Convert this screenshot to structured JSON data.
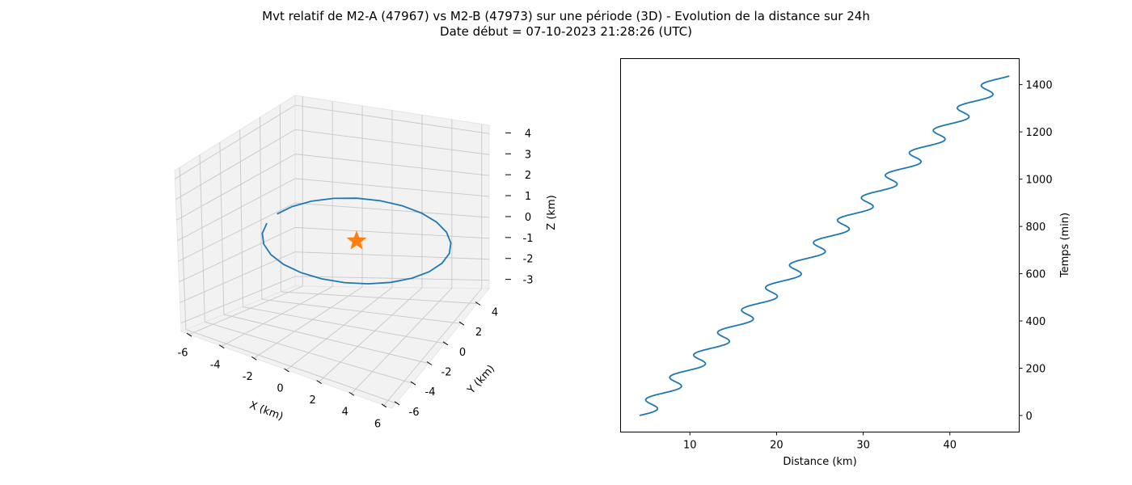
{
  "figure": {
    "title_line1": "Mvt relatif de M2-A (47967) vs M2-B (47973) sur une période (3D) - Evolution de la distance sur 24h",
    "title_line2": "Date début = 07-10-2023 21:28:26 (UTC)"
  },
  "colors": {
    "line": "#1f77b4",
    "marker": "#ff7f0e",
    "pane": "#f2f2f2",
    "grid": "#c8c8c8"
  },
  "chart_data": [
    {
      "type": "line3d",
      "xlabel": "X (km)",
      "ylabel": "Y (km)",
      "zlabel": "Z (km)",
      "xticks": [
        -6,
        -4,
        -2,
        0,
        2,
        4,
        6
      ],
      "yticks": [
        -6,
        -4,
        -2,
        0,
        2,
        4
      ],
      "zticks": [
        -3,
        -2,
        -1,
        0,
        1,
        2,
        3,
        4
      ],
      "xlim": [
        -6.5,
        6.5
      ],
      "ylim": [
        -6.5,
        5.5
      ],
      "zlim": [
        -3.4,
        4.4
      ],
      "marker": {
        "symbol": "star",
        "x": 0,
        "y": 0,
        "z": 0
      },
      "orbit": {
        "center": [
          0,
          0,
          0
        ],
        "semi_axis_x": 6.2,
        "semi_axis_y": 3.6,
        "z_amplitude": 2.2,
        "points": 24
      }
    },
    {
      "type": "line",
      "xlabel": "Distance (km)",
      "ylabel": "Temps (min)",
      "xticks": [
        10,
        20,
        30,
        40
      ],
      "yticks": [
        0,
        200,
        400,
        600,
        800,
        1000,
        1200,
        1400
      ],
      "xlim": [
        2,
        48
      ],
      "ylim": [
        -70,
        1510
      ],
      "yaxis_position": "right",
      "x_start": 4.2,
      "x_end": 46,
      "y_start": 0,
      "y_end": 1436,
      "wave_amplitude_km": 1.3,
      "wave_period_min": 95
    }
  ]
}
